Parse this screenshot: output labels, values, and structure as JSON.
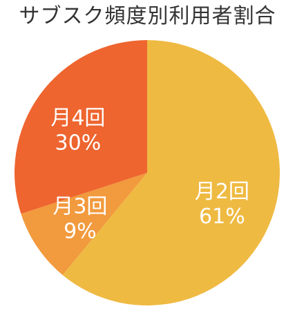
{
  "chart_data": {
    "type": "pie",
    "title": "サブスク頻度別利用者割合",
    "categories": [
      "月2回",
      "月3回",
      "月4回"
    ],
    "values": [
      61,
      9,
      30
    ],
    "value_labels": [
      "61%",
      "9%",
      "30%"
    ],
    "colors": [
      "#EFBA42",
      "#F29A3E",
      "#EE652F"
    ],
    "start_angle_deg": 0,
    "direction": "clockwise",
    "legend": "none"
  }
}
